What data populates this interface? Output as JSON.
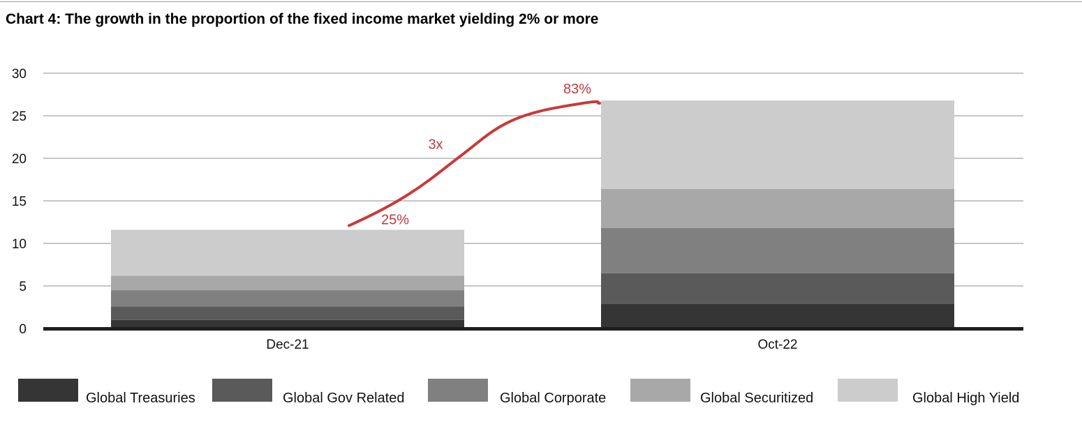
{
  "title": "Chart 4: The growth in the proportion of the fixed income market yielding 2% or more",
  "chart_data": {
    "type": "bar",
    "stacked": true,
    "categories": [
      "Dec-21",
      "Oct-22"
    ],
    "series": [
      {
        "name": "Global Treasuries",
        "color": "#353535",
        "values": [
          1.0,
          2.9
        ]
      },
      {
        "name": "Global Gov Related",
        "color": "#5a5a5a",
        "values": [
          1.6,
          3.6
        ]
      },
      {
        "name": "Global Corporate",
        "color": "#808080",
        "values": [
          1.9,
          5.3
        ]
      },
      {
        "name": "Global Securitized",
        "color": "#a8a8a8",
        "values": [
          1.7,
          4.6
        ]
      },
      {
        "name": "Global High Yield",
        "color": "#cccccc",
        "values": [
          5.4,
          10.4
        ]
      }
    ],
    "ylim": [
      0,
      30
    ],
    "yticks": [
      0,
      5,
      10,
      15,
      20,
      25,
      30
    ],
    "grid": true,
    "legend_position": "bottom",
    "annotations": {
      "color": "#c83a3a",
      "start_label": "25%",
      "middle_label": "3x",
      "end_label": "83%"
    }
  }
}
